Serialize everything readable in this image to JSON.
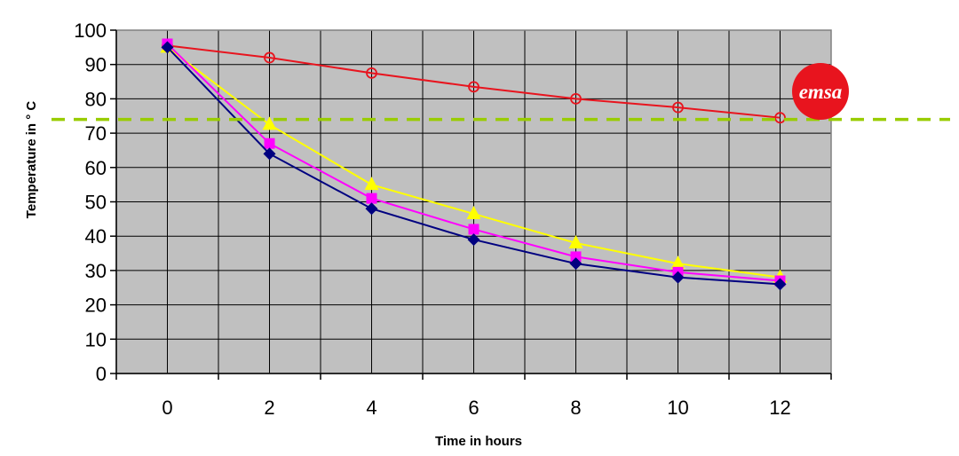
{
  "chart_data": {
    "type": "line",
    "title": "",
    "xlabel": "Time in hours",
    "ylabel": "Temperature in ° C",
    "x": [
      0,
      2,
      4,
      6,
      8,
      10,
      12
    ],
    "xlim": [
      -1,
      13
    ],
    "ylim": [
      0,
      100
    ],
    "x_ticks": [
      0,
      2,
      4,
      6,
      8,
      10,
      12
    ],
    "y_ticks": [
      0,
      10,
      20,
      30,
      40,
      50,
      60,
      70,
      80,
      90,
      100
    ],
    "grid": true,
    "plot_background": "#c0c0c0",
    "series": [
      {
        "marker": "circle",
        "color": "#e8141e",
        "values": [
          95.5,
          92,
          87.5,
          83.5,
          80,
          77.5,
          74.5
        ]
      },
      {
        "marker": "triangle",
        "color": "#ffff00",
        "values": [
          95,
          72.5,
          55,
          46.5,
          38,
          32,
          28
        ]
      },
      {
        "marker": "square",
        "color": "#ff00ff",
        "values": [
          96,
          67,
          51,
          42,
          34,
          29.5,
          27
        ]
      },
      {
        "marker": "diamond",
        "color": "#000080",
        "values": [
          95,
          64,
          48,
          39,
          32,
          28,
          26
        ]
      }
    ],
    "reference_line": {
      "value": 74,
      "style": "dashed",
      "color": "#99cc00"
    },
    "logo": {
      "text": "emsa",
      "color": "#e8141e"
    }
  }
}
